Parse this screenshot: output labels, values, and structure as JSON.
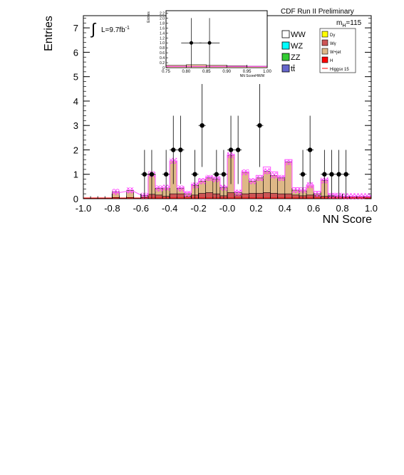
{
  "header": {
    "run_label": "CDF Run II Preliminary",
    "mass_label": "m",
    "mass_sub": "H",
    "mass_value": "=115",
    "lumi_label": "L=9.7fb",
    "lumi_sup": "-1",
    "integral_symbol": "∫"
  },
  "legend": {
    "left": [
      {
        "label": "WW",
        "color": "#ffffff"
      },
      {
        "label": "WZ",
        "color": "#00ffff"
      },
      {
        "label": "ZZ",
        "color": "#33cc33"
      },
      {
        "label": "tt̄",
        "color": "#6666cc"
      }
    ],
    "right": [
      {
        "label": "Dγ",
        "color": "#ffff00"
      },
      {
        "label": "Wγ",
        "color": "#cc5555"
      },
      {
        "label": "W+jet",
        "color": "#deb887"
      },
      {
        "label": "H",
        "color": "#ff0000"
      },
      {
        "label": "Higgsx 15",
        "color": "#ff0000",
        "line": true
      }
    ]
  },
  "chart_data": [
    {
      "type": "bar",
      "xlabel": "NN Score",
      "ylabel": "Entries",
      "xlim": [
        -1.0,
        1.0
      ],
      "ylim": [
        0,
        7.5
      ],
      "x_ticks": [
        "-1.0",
        "-0.8",
        "-0.6",
        "-0.4",
        "-0.2",
        "-0.0",
        "0.2",
        "0.4",
        "0.6",
        "0.8",
        "1.0"
      ],
      "y_ticks": [
        "0",
        "1",
        "2",
        "3",
        "4",
        "5",
        "6",
        "7"
      ],
      "bin_width": 0.05,
      "bin_lo": [
        -0.8,
        -0.7,
        -0.6,
        -0.55,
        -0.5,
        -0.45,
        -0.4,
        -0.35,
        -0.3,
        -0.25,
        -0.2,
        -0.15,
        -0.1,
        -0.05,
        0.0,
        0.05,
        0.1,
        0.15,
        0.2,
        0.25,
        0.3,
        0.35,
        0.4,
        0.45,
        0.5,
        0.55,
        0.6,
        0.65,
        0.7,
        0.75,
        0.8,
        0.85,
        0.9,
        0.95
      ],
      "series": [
        {
          "name": "W+jet",
          "values": [
            0.28,
            0.34,
            0.12,
            1.0,
            0.42,
            0.45,
            1.55,
            0.42,
            0.2,
            0.55,
            0.72,
            0.85,
            0.8,
            0.45,
            1.78,
            0.25,
            1.08,
            0.72,
            0.85,
            1.12,
            0.95,
            0.85,
            1.5,
            0.35,
            0.35,
            0.55,
            0.2,
            0.75,
            0.12,
            0.12,
            0.1,
            0.1,
            0.1,
            0.1
          ]
        },
        {
          "name": "Wγ",
          "values": [
            0.05,
            0.05,
            0.05,
            0.18,
            0.15,
            0.1,
            0.2,
            0.2,
            0.1,
            0.15,
            0.22,
            0.25,
            0.2,
            0.12,
            0.25,
            0.15,
            0.2,
            0.22,
            0.22,
            0.25,
            0.22,
            0.2,
            0.2,
            0.15,
            0.12,
            0.15,
            0.12,
            0.1,
            0.1,
            0.1,
            0.08,
            0.08,
            0.08,
            0.08
          ]
        }
      ],
      "higgs_x15": [
        0.25,
        0.3,
        0.15,
        0.95,
        0.45,
        0.45,
        1.55,
        0.45,
        0.25,
        0.6,
        0.8,
        0.9,
        0.85,
        0.5,
        1.8,
        0.3,
        1.1,
        0.8,
        0.95,
        1.3,
        1.1,
        0.9,
        1.6,
        0.45,
        0.35,
        0.55,
        0.3,
        0.8,
        0.18,
        0.12,
        0.1,
        0.1,
        0.1,
        0.1
      ],
      "data": {
        "x": [
          -0.575,
          -0.525,
          -0.425,
          -0.375,
          -0.325,
          -0.225,
          -0.175,
          -0.075,
          -0.025,
          0.025,
          0.075,
          0.225,
          0.525,
          0.575,
          0.675,
          0.725,
          0.775,
          0.825
        ],
        "y": [
          1,
          1,
          1,
          2,
          2,
          1,
          3,
          1,
          1,
          2,
          2,
          3,
          1,
          2,
          1,
          1,
          1,
          1
        ],
        "yerr": [
          1,
          1,
          1,
          1.4,
          1.4,
          1,
          1.7,
          1,
          1,
          1.4,
          1.4,
          1.7,
          1,
          1.4,
          1,
          1,
          1,
          1
        ]
      }
    },
    {
      "type": "bar",
      "xlabel": "NN ScoreHWW",
      "ylabel": "Entries",
      "xlim": [
        0.75,
        1.0
      ],
      "ylim": [
        0,
        2.3
      ],
      "x_ticks": [
        "0.75",
        "0.80",
        "0.85",
        "0.90",
        "0.95",
        "1.00"
      ],
      "y_ticks": [
        "0",
        "0.2",
        "0.4",
        "0.6",
        "0.8",
        "1.0",
        "1.2",
        "1.4",
        "1.6",
        "1.8",
        "2.0",
        "2.2"
      ],
      "series": [
        {
          "name": "W+jet",
          "values": [
            0.1,
            0.12,
            0.1,
            0.08,
            0.06
          ]
        }
      ],
      "bin_lo": [
        0.75,
        0.8,
        0.85,
        0.9,
        0.95
      ],
      "bin_width": 0.05,
      "data": {
        "x": [
          0.8125,
          0.8575
        ],
        "y": [
          1,
          1
        ],
        "yerr": [
          1,
          1
        ]
      }
    }
  ]
}
